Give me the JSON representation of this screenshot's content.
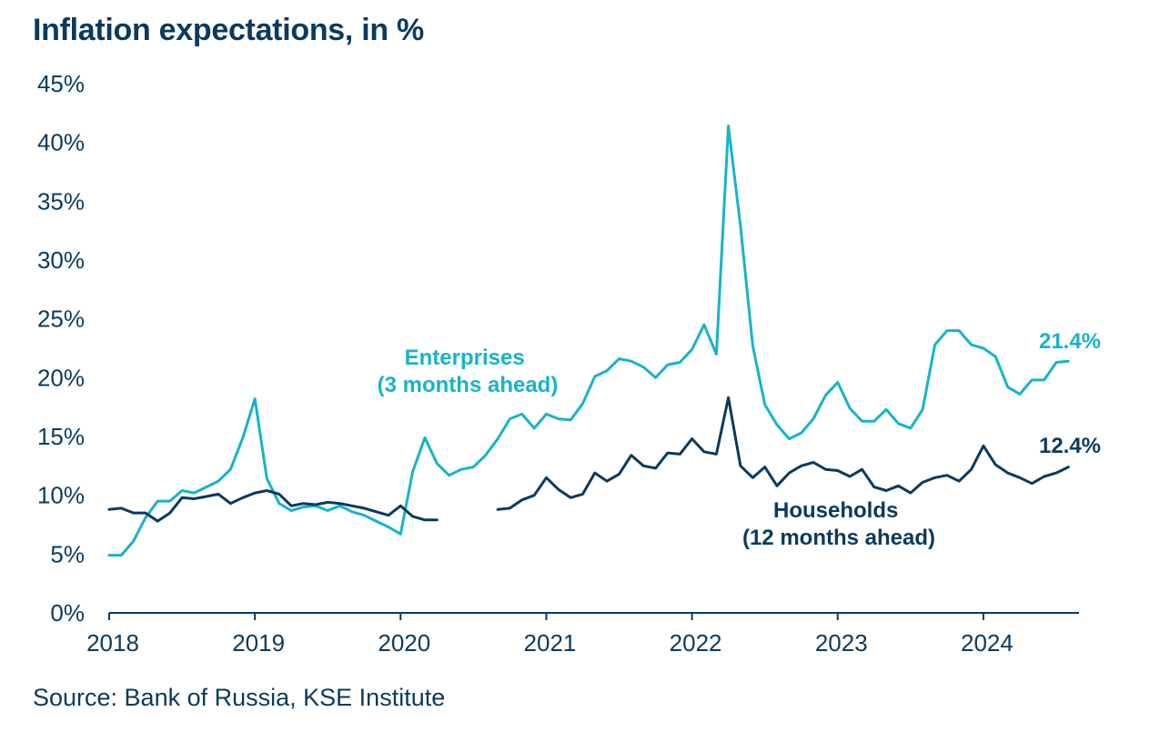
{
  "title": "Inflation expectations, in %",
  "source": "Source: Bank of Russia, KSE Institute",
  "colors": {
    "text": "#0b3a5e",
    "enterprises": "#17b3cc",
    "households": "#0b3a5e"
  },
  "chart_data": {
    "type": "line",
    "title": "Inflation expectations, in %",
    "x_unit": "year (monthly observations)",
    "xlim": [
      2018.0,
      2024.6
    ],
    "ylim": [
      0,
      45
    ],
    "x_ticks": [
      2018,
      2019,
      2020,
      2021,
      2022,
      2023,
      2024
    ],
    "x_tick_labels": [
      "2018",
      "2019",
      "2020",
      "2021",
      "2022",
      "2023",
      "2024"
    ],
    "y_ticks": [
      0,
      5,
      10,
      15,
      20,
      25,
      30,
      35,
      40,
      45
    ],
    "y_tick_labels": [
      "0%",
      "5%",
      "10%",
      "15%",
      "20%",
      "25%",
      "30%",
      "35%",
      "40%",
      "45%"
    ],
    "grid": false,
    "legend": "inline labels",
    "series": [
      {
        "name": "Enterprises\n(3 months ahead)",
        "color": "#17b3cc",
        "end_label": "21.4%",
        "points": [
          [
            2018.0,
            4.9
          ],
          [
            2018.083,
            4.9
          ],
          [
            2018.167,
            6.1
          ],
          [
            2018.25,
            8.1
          ],
          [
            2018.333,
            9.5
          ],
          [
            2018.417,
            9.5
          ],
          [
            2018.5,
            10.4
          ],
          [
            2018.583,
            10.2
          ],
          [
            2018.667,
            10.7
          ],
          [
            2018.75,
            11.2
          ],
          [
            2018.833,
            12.2
          ],
          [
            2018.917,
            14.9
          ],
          [
            2019.0,
            18.2
          ],
          [
            2019.083,
            11.4
          ],
          [
            2019.167,
            9.3
          ],
          [
            2019.25,
            8.7
          ],
          [
            2019.333,
            9.0
          ],
          [
            2019.417,
            9.1
          ],
          [
            2019.5,
            8.7
          ],
          [
            2019.583,
            9.1
          ],
          [
            2019.667,
            8.6
          ],
          [
            2019.75,
            8.3
          ],
          [
            2019.833,
            7.8
          ],
          [
            2019.917,
            7.3
          ],
          [
            2020.0,
            6.7
          ],
          [
            2020.083,
            12.0
          ],
          [
            2020.167,
            14.9
          ],
          [
            2020.25,
            12.7
          ],
          [
            2020.333,
            11.7
          ],
          [
            2020.417,
            12.2
          ],
          [
            2020.5,
            12.4
          ],
          [
            2020.583,
            13.4
          ],
          [
            2020.667,
            14.8
          ],
          [
            2020.75,
            16.5
          ],
          [
            2020.833,
            16.9
          ],
          [
            2020.917,
            15.7
          ],
          [
            2021.0,
            16.9
          ],
          [
            2021.083,
            16.5
          ],
          [
            2021.167,
            16.4
          ],
          [
            2021.25,
            17.8
          ],
          [
            2021.333,
            20.1
          ],
          [
            2021.417,
            20.6
          ],
          [
            2021.5,
            21.6
          ],
          [
            2021.583,
            21.4
          ],
          [
            2021.667,
            20.9
          ],
          [
            2021.75,
            20.0
          ],
          [
            2021.833,
            21.1
          ],
          [
            2021.917,
            21.3
          ],
          [
            2022.0,
            22.4
          ],
          [
            2022.083,
            24.5
          ],
          [
            2022.167,
            22.0
          ],
          [
            2022.25,
            41.4
          ],
          [
            2022.333,
            32.9
          ],
          [
            2022.417,
            22.7
          ],
          [
            2022.5,
            17.7
          ],
          [
            2022.583,
            16.0
          ],
          [
            2022.667,
            14.8
          ],
          [
            2022.75,
            15.3
          ],
          [
            2022.833,
            16.5
          ],
          [
            2022.917,
            18.5
          ],
          [
            2023.0,
            19.6
          ],
          [
            2023.083,
            17.4
          ],
          [
            2023.167,
            16.3
          ],
          [
            2023.25,
            16.3
          ],
          [
            2023.333,
            17.3
          ],
          [
            2023.417,
            16.1
          ],
          [
            2023.5,
            15.7
          ],
          [
            2023.583,
            17.3
          ],
          [
            2023.667,
            22.8
          ],
          [
            2023.75,
            24.0
          ],
          [
            2023.833,
            24.0
          ],
          [
            2023.917,
            22.8
          ],
          [
            2024.0,
            22.5
          ],
          [
            2024.083,
            21.8
          ],
          [
            2024.167,
            19.2
          ],
          [
            2024.25,
            18.6
          ],
          [
            2024.333,
            19.8
          ],
          [
            2024.417,
            19.8
          ],
          [
            2024.5,
            21.3
          ],
          [
            2024.583,
            21.4
          ]
        ]
      },
      {
        "name": "Households\n(12 months ahead)",
        "color": "#0b3a5e",
        "end_label": "12.4%",
        "segments": [
          [
            [
              2018.0,
              8.8
            ],
            [
              2018.083,
              8.9
            ],
            [
              2018.167,
              8.5
            ],
            [
              2018.25,
              8.5
            ],
            [
              2018.333,
              7.8
            ],
            [
              2018.417,
              8.5
            ],
            [
              2018.5,
              9.8
            ],
            [
              2018.583,
              9.7
            ],
            [
              2018.667,
              9.9
            ],
            [
              2018.75,
              10.1
            ],
            [
              2018.833,
              9.3
            ],
            [
              2018.917,
              9.8
            ],
            [
              2019.0,
              10.2
            ],
            [
              2019.083,
              10.4
            ],
            [
              2019.167,
              10.1
            ],
            [
              2019.25,
              9.1
            ],
            [
              2019.333,
              9.3
            ],
            [
              2019.417,
              9.2
            ],
            [
              2019.5,
              9.4
            ],
            [
              2019.583,
              9.3
            ],
            [
              2019.667,
              9.1
            ],
            [
              2019.75,
              8.9
            ],
            [
              2019.833,
              8.6
            ],
            [
              2019.917,
              8.3
            ],
            [
              2020.0,
              9.1
            ],
            [
              2020.083,
              8.2
            ],
            [
              2020.167,
              7.9
            ],
            [
              2020.25,
              7.9
            ]
          ],
          [
            [
              2020.667,
              8.8
            ],
            [
              2020.75,
              8.9
            ],
            [
              2020.833,
              9.6
            ],
            [
              2020.917,
              10.0
            ],
            [
              2021.0,
              11.5
            ],
            [
              2021.083,
              10.5
            ],
            [
              2021.167,
              9.8
            ],
            [
              2021.25,
              10.1
            ],
            [
              2021.333,
              11.9
            ],
            [
              2021.417,
              11.2
            ],
            [
              2021.5,
              11.8
            ],
            [
              2021.583,
              13.4
            ],
            [
              2021.667,
              12.5
            ],
            [
              2021.75,
              12.3
            ],
            [
              2021.833,
              13.6
            ],
            [
              2021.917,
              13.5
            ],
            [
              2022.0,
              14.8
            ],
            [
              2022.083,
              13.7
            ],
            [
              2022.167,
              13.5
            ],
            [
              2022.25,
              18.3
            ],
            [
              2022.333,
              12.5
            ],
            [
              2022.417,
              11.5
            ],
            [
              2022.5,
              12.4
            ],
            [
              2022.583,
              10.8
            ],
            [
              2022.667,
              11.9
            ],
            [
              2022.75,
              12.5
            ],
            [
              2022.833,
              12.8
            ],
            [
              2022.917,
              12.2
            ],
            [
              2023.0,
              12.1
            ],
            [
              2023.083,
              11.6
            ],
            [
              2023.167,
              12.2
            ],
            [
              2023.25,
              10.7
            ],
            [
              2023.333,
              10.4
            ],
            [
              2023.417,
              10.8
            ],
            [
              2023.5,
              10.2
            ],
            [
              2023.583,
              11.1
            ],
            [
              2023.667,
              11.5
            ],
            [
              2023.75,
              11.7
            ],
            [
              2023.833,
              11.2
            ],
            [
              2023.917,
              12.2
            ],
            [
              2024.0,
              14.2
            ],
            [
              2024.083,
              12.6
            ],
            [
              2024.167,
              11.9
            ],
            [
              2024.25,
              11.5
            ],
            [
              2024.333,
              11.0
            ],
            [
              2024.417,
              11.6
            ],
            [
              2024.5,
              11.9
            ],
            [
              2024.583,
              12.4
            ]
          ]
        ]
      }
    ]
  }
}
